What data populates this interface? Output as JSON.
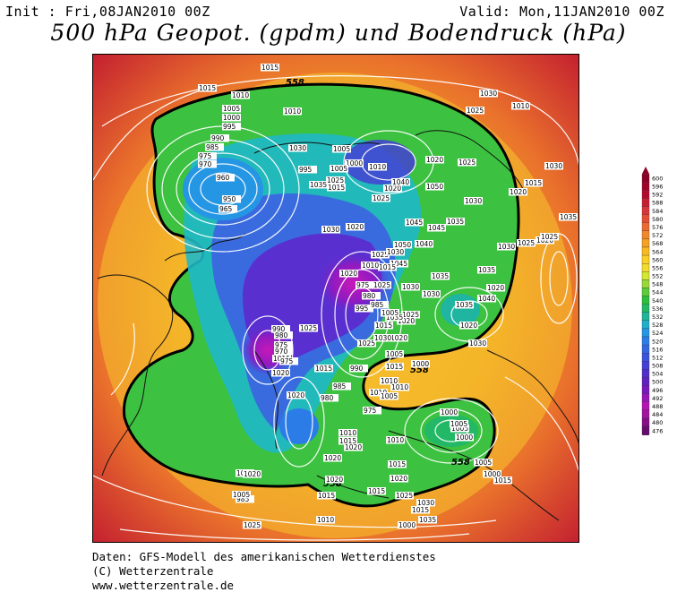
{
  "header": {
    "init_text": "Init : Fri,08JAN2010 00Z",
    "valid_text": "Valid: Mon,11JAN2010 00Z",
    "title": "500 hPa Geopot. (gpdm) und Bodendruck (hPa)"
  },
  "footer": {
    "source_line": "Daten: GFS-Modell des amerikanischen Wetterdienstes",
    "copyright_line": "(C) Wetterzentrale",
    "url_line": "www.wetterzentrale.de"
  },
  "legend": {
    "values": [
      "600",
      "596",
      "592",
      "588",
      "584",
      "580",
      "576",
      "572",
      "568",
      "564",
      "560",
      "556",
      "552",
      "548",
      "544",
      "540",
      "536",
      "532",
      "528",
      "524",
      "520",
      "516",
      "512",
      "508",
      "504",
      "500",
      "496",
      "492",
      "488",
      "484",
      "480",
      "476"
    ],
    "colors": [
      "#8b0026",
      "#a0002a",
      "#b5082e",
      "#c81e34",
      "#d8343a",
      "#e44e36",
      "#ec6a30",
      "#f2862a",
      "#f6a024",
      "#f9b820",
      "#fbcf24",
      "#f2dc2a",
      "#d6e82e",
      "#9ad83a",
      "#5ccc3a",
      "#2cbf3c",
      "#22b866",
      "#1fb59a",
      "#20aecd",
      "#2596e4",
      "#2c7ce8",
      "#3466e4",
      "#3b52dc",
      "#4440d4",
      "#502ecb",
      "#6020c0",
      "#7818bc",
      "#9816b8",
      "#b414b4",
      "#a412a0",
      "#860e86",
      "#660c6c"
    ]
  },
  "map": {
    "contour_label_558": "558",
    "pressure_labels": [
      "1015",
      "1015",
      "1010",
      "1010",
      "1005",
      "1000",
      "995",
      "990",
      "985",
      "975",
      "970",
      "960",
      "965",
      "950",
      "1005",
      "1000",
      "1005",
      "995",
      "1015",
      "1030",
      "1025",
      "1035",
      "1030",
      "1020",
      "1010",
      "1020",
      "1025",
      "1040",
      "1045",
      "1050",
      "1045",
      "1035",
      "1030",
      "1020",
      "1025",
      "1050",
      "1040",
      "1045",
      "1030",
      "1020",
      "1035",
      "1030",
      "1040",
      "1035",
      "1020",
      "1030",
      "1025",
      "1020",
      "1025",
      "1030",
      "1035",
      "1015",
      "1020",
      "1025",
      "1030",
      "1010",
      "1035",
      "1030",
      "1025",
      "1015",
      "1020",
      "1025",
      "1030",
      "1005",
      "1000",
      "1005",
      "1000",
      "1010",
      "1015",
      "1020",
      "1025",
      "1030",
      "1035",
      "1015",
      "1000",
      "1005",
      "1000",
      "1015",
      "1020",
      "1025",
      "1015",
      "1010",
      "1005",
      "1010",
      "1015",
      "1020",
      "1010",
      "1015",
      "1020",
      "1020",
      "1015",
      "1015",
      "1010",
      "1020",
      "1025",
      "1030",
      "985",
      "1020",
      "1005",
      "990",
      "980",
      "975",
      "970",
      "1015",
      "975",
      "990",
      "985",
      "980",
      "975",
      "1005",
      "1000",
      "1010",
      "995",
      "1020",
      "1035",
      "1005",
      "985",
      "980",
      "975",
      "1025",
      "1020",
      "1015",
      "1010",
      "1025",
      "1030"
    ]
  }
}
